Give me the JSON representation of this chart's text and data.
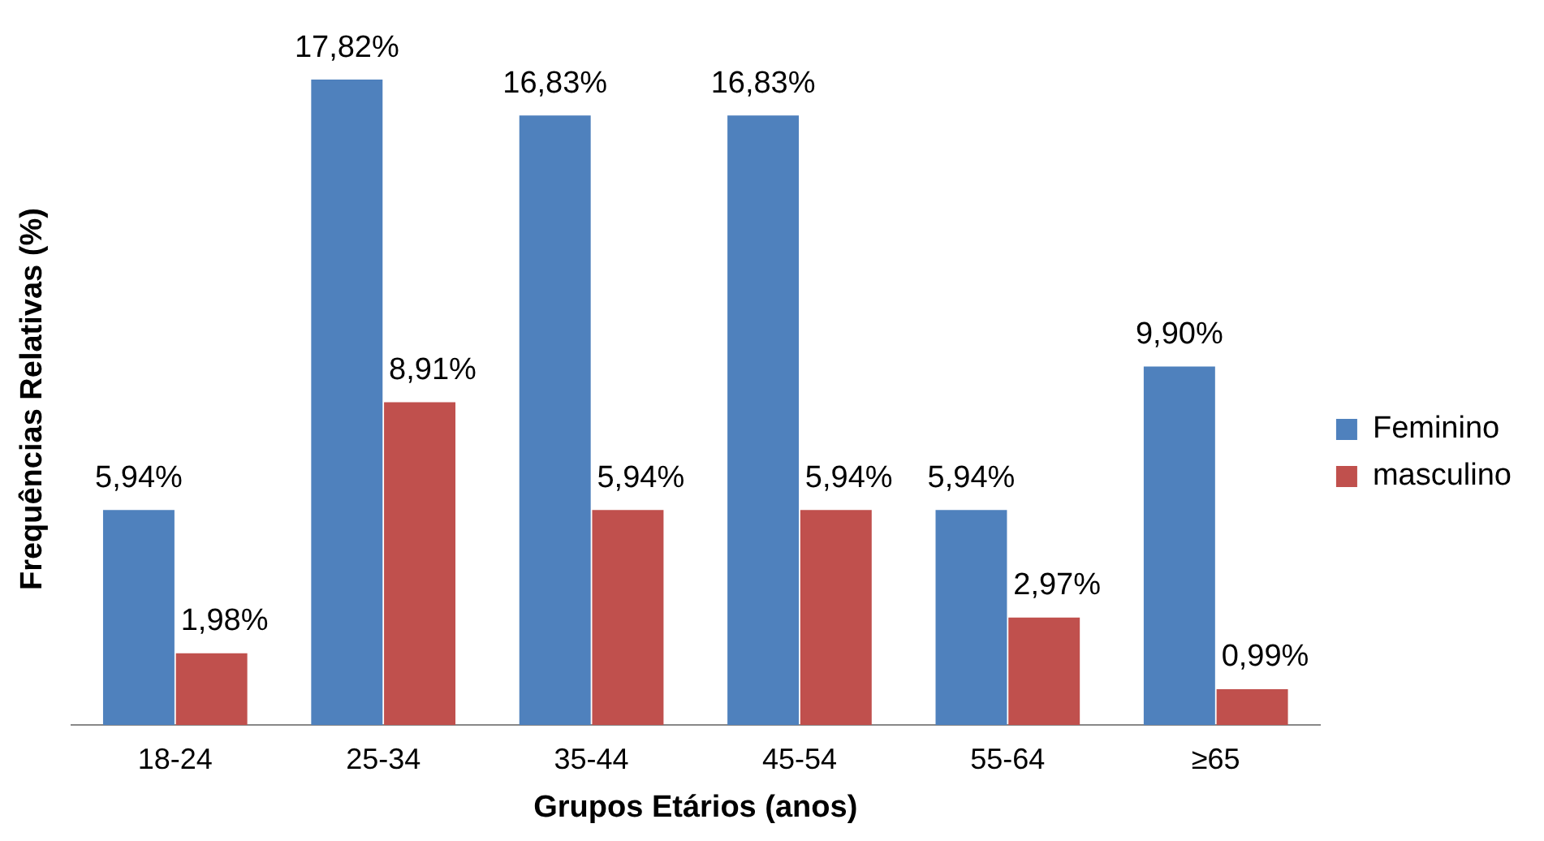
{
  "chart_data": {
    "type": "bar",
    "xlabel": "Grupos Etários (anos)",
    "ylabel": "Frequências Relativas (%)",
    "categories": [
      "18-24",
      "25-34",
      "35-44",
      "45-54",
      "55-64",
      "≥65"
    ],
    "series": [
      {
        "name": "Feminino",
        "color": "#4f81bd",
        "values": [
          5.94,
          17.82,
          16.83,
          16.83,
          5.94,
          9.9
        ],
        "value_labels": [
          "5,94%",
          "17,82%",
          "16,83%",
          "16,83%",
          "5,94%",
          "9,90%"
        ]
      },
      {
        "name": "masculino",
        "color": "#c0504d",
        "values": [
          1.98,
          8.91,
          5.94,
          5.94,
          2.97,
          0.99
        ],
        "value_labels": [
          "1,98%",
          "8,91%",
          "5,94%",
          "5,94%",
          "2,97%",
          "0,99%"
        ]
      }
    ],
    "legend": "right",
    "grid": false,
    "tick_labels": "x"
  }
}
